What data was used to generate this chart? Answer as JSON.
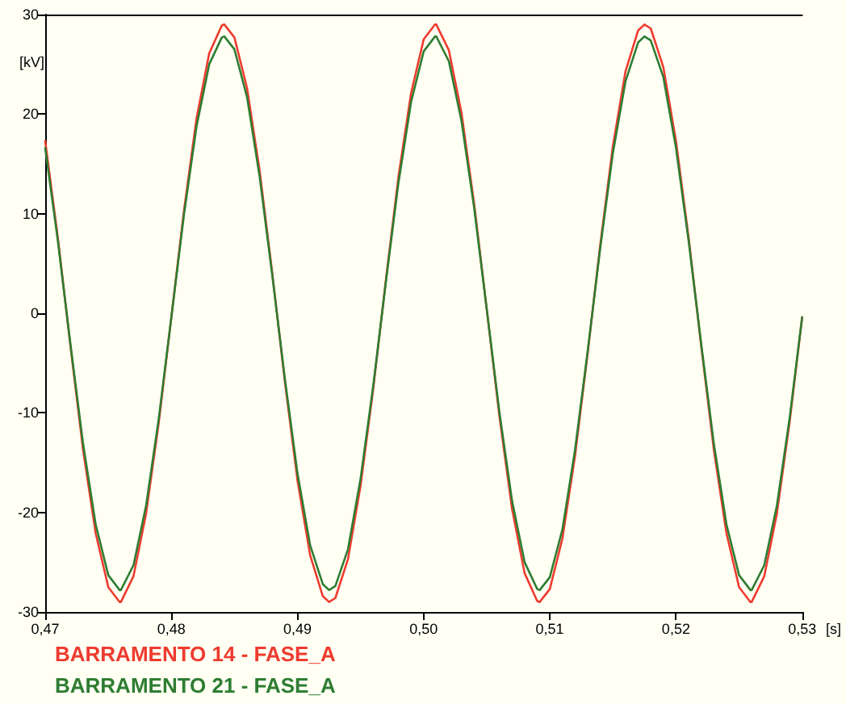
{
  "chart_data": {
    "type": "line",
    "xlabel": "[s]",
    "ylabel": "[kV]",
    "x": [
      0.47,
      0.471,
      0.472,
      0.473,
      0.474,
      0.475,
      0.4759,
      0.476,
      0.477,
      0.478,
      0.479,
      0.48,
      0.481,
      0.482,
      0.483,
      0.484,
      0.4842,
      0.485,
      0.486,
      0.487,
      0.488,
      0.489,
      0.49,
      0.491,
      0.492,
      0.4925,
      0.493,
      0.494,
      0.495,
      0.496,
      0.497,
      0.498,
      0.499,
      0.5,
      0.5009,
      0.501,
      0.502,
      0.503,
      0.504,
      0.505,
      0.506,
      0.507,
      0.508,
      0.509,
      0.5092,
      0.51,
      0.511,
      0.512,
      0.513,
      0.514,
      0.515,
      0.516,
      0.517,
      0.5175,
      0.518,
      0.519,
      0.52,
      0.521,
      0.522,
      0.523,
      0.524,
      0.525,
      0.5259,
      0.526,
      0.527,
      0.528,
      0.529,
      0.53
    ],
    "series": [
      {
        "name": "BARRAMENTO 14 - FASE_A",
        "color": "#ee3b2f",
        "values": [
          17.3,
          7.6,
          -3.3,
          -13.7,
          -22.1,
          -27.5,
          -29.0,
          -29.0,
          -26.4,
          -20.1,
          -11.0,
          -0.4,
          10.3,
          19.6,
          26.1,
          28.9,
          29.0,
          27.7,
          22.6,
          14.3,
          4.0,
          -6.9,
          -16.8,
          -24.3,
          -28.4,
          -29.0,
          -28.6,
          -24.7,
          -17.3,
          -7.6,
          3.3,
          13.7,
          22.1,
          27.5,
          29.0,
          29.0,
          26.4,
          20.1,
          11.0,
          0.4,
          -10.3,
          -19.6,
          -26.1,
          -28.9,
          -29.0,
          -27.7,
          -22.6,
          -14.3,
          -4.0,
          6.9,
          16.8,
          24.3,
          28.4,
          29.0,
          28.6,
          24.7,
          17.3,
          7.6,
          -3.3,
          -13.7,
          -22.1,
          -27.5,
          -29.0,
          -29.0,
          -26.4,
          -20.1,
          -11.0,
          -0.4
        ]
      },
      {
        "name": "BARRAMENTO 21 - FASE_A",
        "color": "#2e7d32",
        "values": [
          16.6,
          7.3,
          -3.1,
          -13.1,
          -21.2,
          -26.3,
          -27.8,
          -27.8,
          -25.3,
          -19.3,
          -10.6,
          -0.4,
          9.9,
          18.8,
          25.0,
          27.7,
          27.8,
          26.5,
          21.7,
          13.7,
          3.8,
          -6.6,
          -16.1,
          -23.3,
          -27.2,
          -27.8,
          -27.4,
          -23.7,
          -16.6,
          -7.3,
          3.1,
          13.1,
          21.2,
          26.3,
          27.8,
          27.8,
          25.3,
          19.3,
          10.6,
          0.4,
          -9.9,
          -18.8,
          -25.0,
          -27.7,
          -27.8,
          -26.5,
          -21.7,
          -13.7,
          -3.8,
          6.6,
          16.1,
          23.3,
          27.2,
          27.8,
          27.4,
          23.7,
          16.6,
          7.3,
          -3.1,
          -13.1,
          -21.2,
          -26.3,
          -27.8,
          -27.8,
          -25.3,
          -19.3,
          -10.6,
          -0.4
        ]
      }
    ],
    "xlim": [
      0.47,
      0.53
    ],
    "xticks": [
      {
        "value": 0.47,
        "label": "0,47"
      },
      {
        "value": 0.48,
        "label": "0,48"
      },
      {
        "value": 0.49,
        "label": "0,49"
      },
      {
        "value": 0.5,
        "label": "0,50"
      },
      {
        "value": 0.51,
        "label": "0,51"
      },
      {
        "value": 0.52,
        "label": "0,52"
      },
      {
        "value": 0.53,
        "label": "0,53"
      }
    ],
    "ylim": [
      -30,
      30
    ],
    "yticks": [
      -30,
      -20,
      -10,
      0,
      10,
      20,
      30
    ],
    "legend": "bottom left",
    "marker": "none",
    "line_style": "solid"
  }
}
